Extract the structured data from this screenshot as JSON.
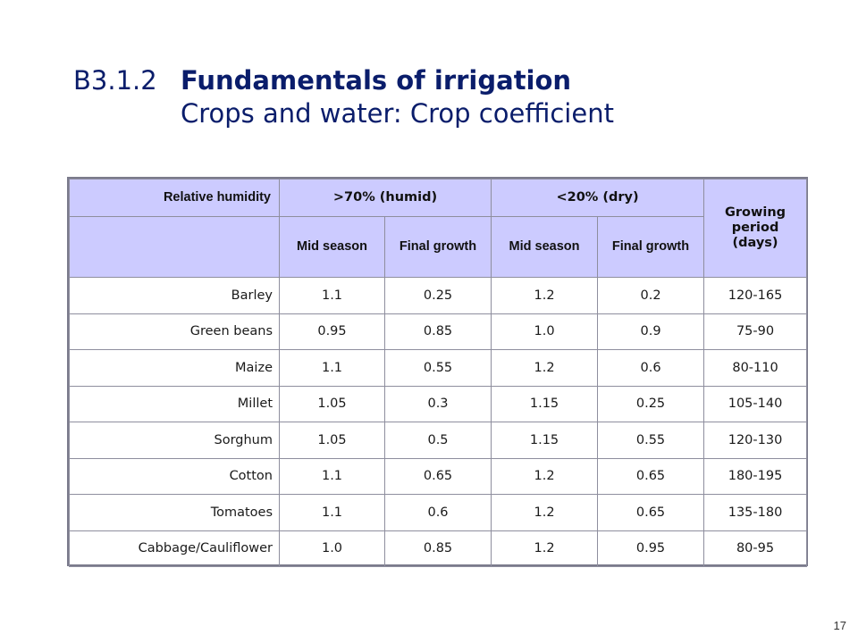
{
  "title": {
    "section_number": "B3.1.2",
    "main_title": "Fundamentals of irrigation",
    "subtitle": "Crops and water: Crop coefficient"
  },
  "table": {
    "headers": {
      "relative_humidity": "Relative humidity",
      "humid": ">70% (humid)",
      "dry": "<20% (dry)",
      "growing_period": "Growing period (days)",
      "humid_mid_season": "Mid season",
      "humid_final_growth": "Final growth",
      "dry_mid_season": "Mid season",
      "dry_final_growth": "Final growth"
    },
    "rows": [
      {
        "crop": "Barley",
        "humid_mid": "1.1",
        "humid_final": "0.25",
        "dry_mid": "1.2",
        "dry_final": "0.2",
        "period": "120-165"
      },
      {
        "crop": "Green beans",
        "humid_mid": "0.95",
        "humid_final": "0.85",
        "dry_mid": "1.0",
        "dry_final": "0.9",
        "period": "75-90"
      },
      {
        "crop": "Maize",
        "humid_mid": "1.1",
        "humid_final": "0.55",
        "dry_mid": "1.2",
        "dry_final": "0.6",
        "period": "80-110"
      },
      {
        "crop": "Millet",
        "humid_mid": "1.05",
        "humid_final": "0.3",
        "dry_mid": "1.15",
        "dry_final": "0.25",
        "period": "105-140"
      },
      {
        "crop": "Sorghum",
        "humid_mid": "1.05",
        "humid_final": "0.5",
        "dry_mid": "1.15",
        "dry_final": "0.55",
        "period": "120-130"
      },
      {
        "crop": "Cotton",
        "humid_mid": "1.1",
        "humid_final": "0.65",
        "dry_mid": "1.2",
        "dry_final": "0.65",
        "period": "180-195"
      },
      {
        "crop": "Tomatoes",
        "humid_mid": "1.1",
        "humid_final": "0.6",
        "dry_mid": "1.2",
        "dry_final": "0.65",
        "period": "135-180"
      },
      {
        "crop": "Cabbage/Cauliflower",
        "humid_mid": "1.0",
        "humid_final": "0.85",
        "dry_mid": "1.2",
        "dry_final": "0.95",
        "period": "80-95"
      }
    ]
  },
  "page_number": "17",
  "colors": {
    "title": "#0a1d6b",
    "header_background": "#cccbff",
    "table_border": "#7b7b8c"
  }
}
